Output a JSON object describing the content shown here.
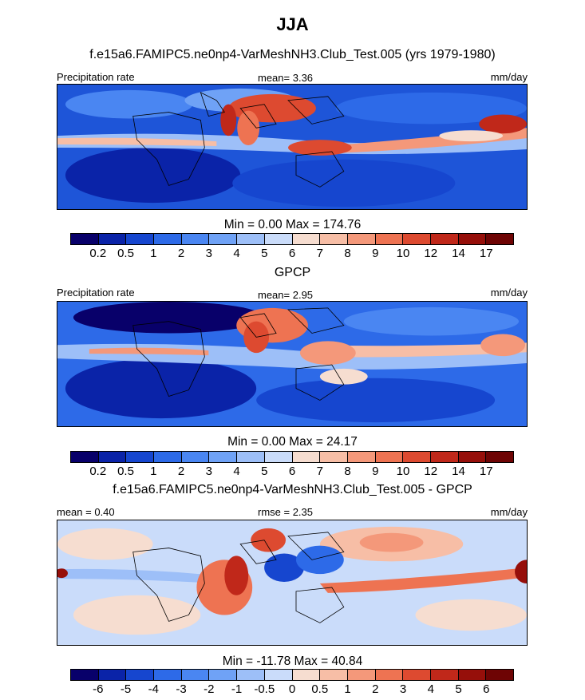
{
  "title": "JJA",
  "panels": [
    {
      "subtitle": "f.e15a6.FAMIPC5.ne0np4-VarMeshNH3.Club_Test.005 (yrs 1979-1980)",
      "left_label": "Precipitation rate",
      "mid_label": "mean=   3.36",
      "units": "mm/day",
      "minmax": "Min =   0.00 Max = 174.76",
      "ticks": [
        "0.2",
        "0.5",
        "1",
        "2",
        "3",
        "4",
        "5",
        "6",
        "7",
        "8",
        "9",
        "10",
        "12",
        "14",
        "17"
      ]
    },
    {
      "subtitle": "GPCP",
      "left_label": "Precipitation rate",
      "mid_label": "mean=   2.95",
      "units": "mm/day",
      "minmax": "Min =   0.00 Max =  24.17",
      "ticks": [
        "0.2",
        "0.5",
        "1",
        "2",
        "3",
        "4",
        "5",
        "6",
        "7",
        "8",
        "9",
        "10",
        "12",
        "14",
        "17"
      ]
    },
    {
      "subtitle": "f.e15a6.FAMIPC5.ne0np4-VarMeshNH3.Club_Test.005 - GPCP",
      "left_label": "mean =   0.40",
      "mid_label": "rmse =   2.35",
      "units": "mm/day",
      "minmax": "Min = -11.78 Max =  40.84",
      "ticks": [
        "-6",
        "-5",
        "-4",
        "-3",
        "-2",
        "-1",
        "-0.5",
        "0",
        "0.5",
        "1",
        "2",
        "3",
        "4",
        "5",
        "6"
      ]
    }
  ],
  "colors": {
    "precip": [
      "#08006a",
      "#0a23a8",
      "#1646cf",
      "#2d6ae8",
      "#4a86f2",
      "#6fa2f6",
      "#9dbff8",
      "#cadcfa",
      "#f6ddd0",
      "#f7bea6",
      "#f4987a",
      "#ee7352",
      "#dd4a30",
      "#c0281a",
      "#960f0a",
      "#6e0404"
    ],
    "diff": [
      "#08006a",
      "#0a23a8",
      "#1646cf",
      "#2d6ae8",
      "#4a86f2",
      "#6fa2f6",
      "#9dbff8",
      "#cadcfa",
      "#f6ddd0",
      "#f7bea6",
      "#f4987a",
      "#ee7352",
      "#dd4a30",
      "#c0281a",
      "#960f0a",
      "#6e0404"
    ]
  },
  "chart_data": [
    {
      "type": "heatmap",
      "title": "JJA",
      "subtitle": "f.e15a6.FAMIPC5.ne0np4-VarMeshNH3.Club_Test.005 (yrs 1979-1980)",
      "variable": "Precipitation rate",
      "units": "mm/day",
      "mean": 3.36,
      "min": 0.0,
      "max": 174.76,
      "contour_levels": [
        0.2,
        0.5,
        1,
        2,
        3,
        4,
        5,
        6,
        7,
        8,
        9,
        10,
        12,
        14,
        17
      ]
    },
    {
      "type": "heatmap",
      "subtitle": "GPCP",
      "variable": "Precipitation rate",
      "units": "mm/day",
      "mean": 2.95,
      "min": 0.0,
      "max": 24.17,
      "contour_levels": [
        0.2,
        0.5,
        1,
        2,
        3,
        4,
        5,
        6,
        7,
        8,
        9,
        10,
        12,
        14,
        17
      ]
    },
    {
      "type": "heatmap",
      "subtitle": "f.e15a6.FAMIPC5.ne0np4-VarMeshNH3.Club_Test.005 - GPCP",
      "units": "mm/day",
      "mean": 0.4,
      "rmse": 2.35,
      "min": -11.78,
      "max": 40.84,
      "contour_levels": [
        -6,
        -5,
        -4,
        -3,
        -2,
        -1,
        -0.5,
        0,
        0.5,
        1,
        2,
        3,
        4,
        5,
        6
      ]
    }
  ]
}
